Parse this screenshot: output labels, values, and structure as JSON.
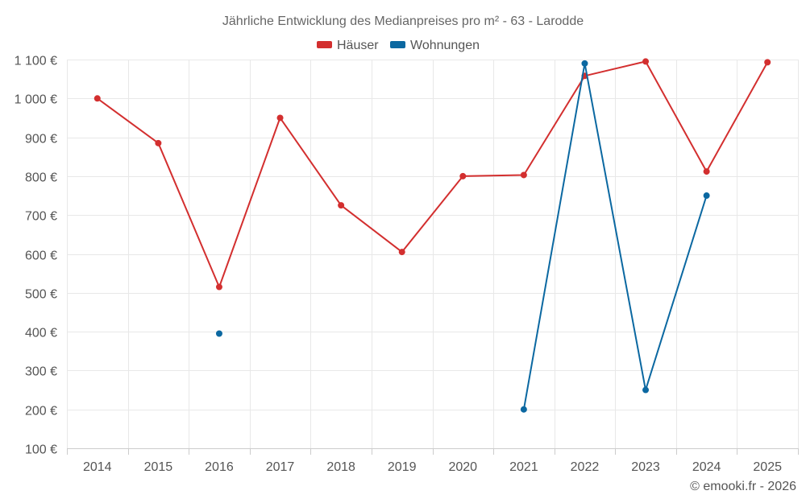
{
  "chart_data": {
    "type": "line",
    "title": "Jährliche Entwicklung des Medianpreises pro m² - 63 - Larodde",
    "categories": [
      "2014",
      "2015",
      "2016",
      "2017",
      "2018",
      "2019",
      "2020",
      "2021",
      "2022",
      "2023",
      "2024",
      "2025"
    ],
    "y_ticks": [
      "100 €",
      "200 €",
      "300 €",
      "400 €",
      "500 €",
      "600 €",
      "700 €",
      "800 €",
      "900 €",
      "1 000 €",
      "1 100 €"
    ],
    "ylim": [
      100,
      1100
    ],
    "xlabel": "",
    "ylabel": "",
    "grid": true,
    "legend_position": "top-center",
    "series": [
      {
        "name": "Häuser",
        "color": "#d32f2f",
        "values": [
          1000,
          885,
          515,
          950,
          725,
          605,
          800,
          803,
          1058,
          1095,
          812,
          1093
        ]
      },
      {
        "name": "Wohnungen",
        "color": "#0b68a1",
        "values": [
          null,
          null,
          395,
          null,
          null,
          null,
          null,
          200,
          1090,
          250,
          750,
          null
        ]
      }
    ]
  },
  "credit": "© emooki.fr - 2026"
}
